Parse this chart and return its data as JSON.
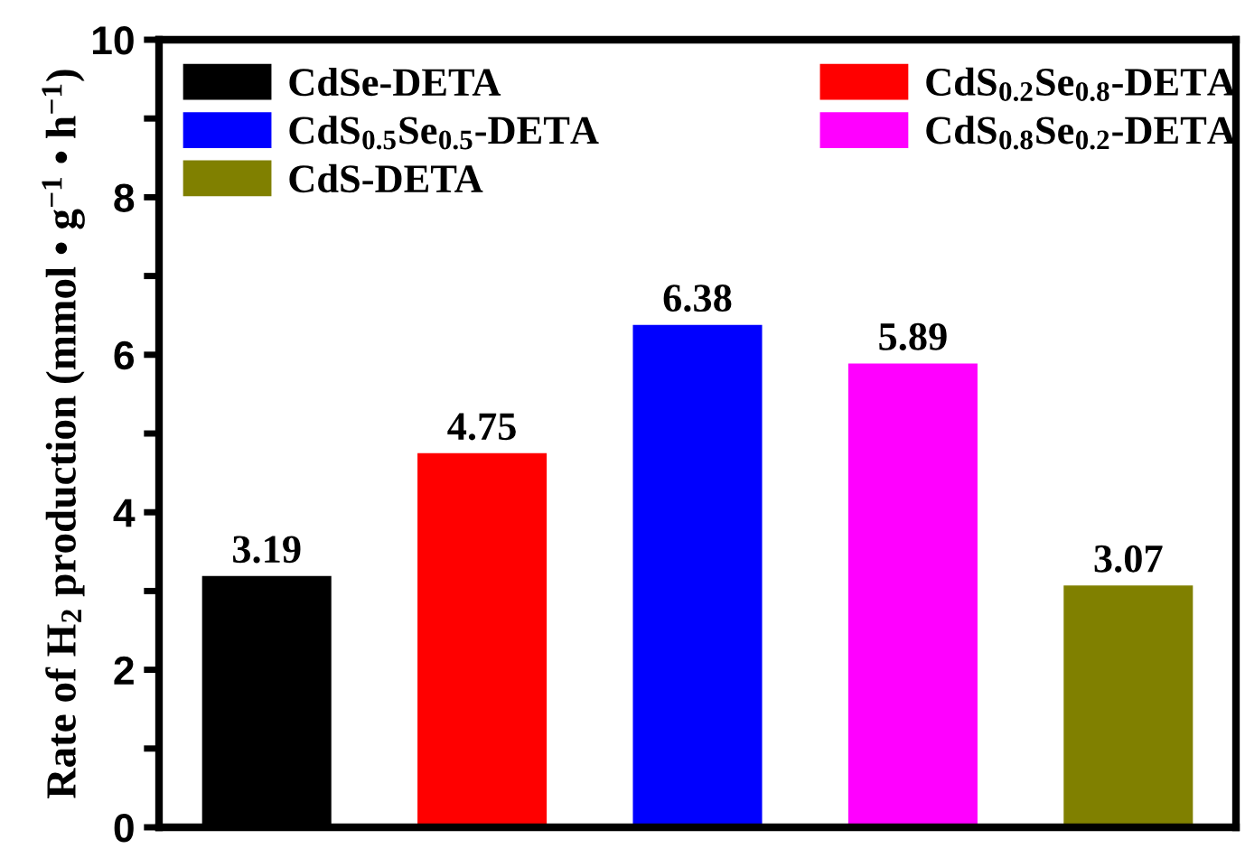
{
  "chart_data": {
    "type": "bar",
    "ylabel": "Rate of H$_{2}$ production (mmol • g$^{−1}$ • h$^{−1}$)",
    "categories": [
      null,
      null,
      null,
      null,
      null
    ],
    "series": [
      {
        "name": "CdSe-DETA",
        "color": "#000000",
        "values": [
          3.19,
          null,
          null,
          null,
          null
        ]
      },
      {
        "name": "CdS$_{0.2}$Se$_{0.8}$-DETA",
        "color": "#ff0000",
        "values": [
          null,
          4.75,
          null,
          null,
          null
        ]
      },
      {
        "name": "CdS$_{0.5}$Se$_{0.5}$-DETA",
        "color": "#0000ff",
        "values": [
          null,
          null,
          6.38,
          null,
          null
        ]
      },
      {
        "name": "CdS$_{0.8}$Se$_{0.2}$-DETA",
        "color": "#ff00ff",
        "values": [
          null,
          null,
          null,
          5.89,
          null
        ]
      },
      {
        "name": "CdS-DETA",
        "color": "#808000",
        "values": [
          null,
          null,
          null,
          null,
          3.07
        ]
      }
    ],
    "ylim": [
      0,
      10
    ],
    "yticks": [
      0,
      {
        "value": 1,
        "label": null
      },
      2,
      {
        "value": 3,
        "label": null
      },
      4,
      {
        "value": 5,
        "label": null
      },
      6,
      {
        "value": 7,
        "label": null
      },
      8,
      {
        "value": 9,
        "label": null
      },
      10
    ],
    "data_labels": true,
    "legend": "top",
    "grid": false
  }
}
